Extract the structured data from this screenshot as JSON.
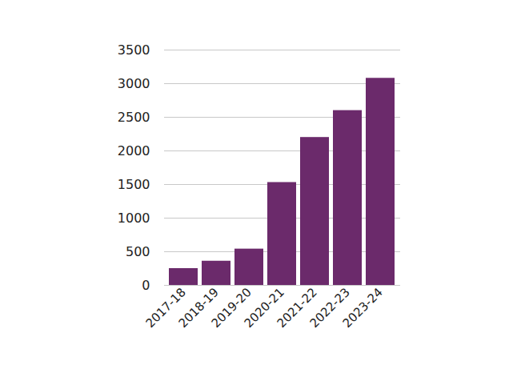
{
  "chart_data": {
    "type": "bar",
    "categories": [
      "2017-18",
      "2018-19",
      "2019-20",
      "2020-21",
      "2021-22",
      "2022-23",
      "2023-24"
    ],
    "values": [
      250,
      360,
      540,
      1530,
      2200,
      2600,
      3080
    ],
    "color": "#6b2a6b",
    "ylim": [
      0,
      3500
    ],
    "yticks": [
      0,
      500,
      1000,
      1500,
      2000,
      2500,
      3000,
      3500
    ],
    "grid": true
  }
}
